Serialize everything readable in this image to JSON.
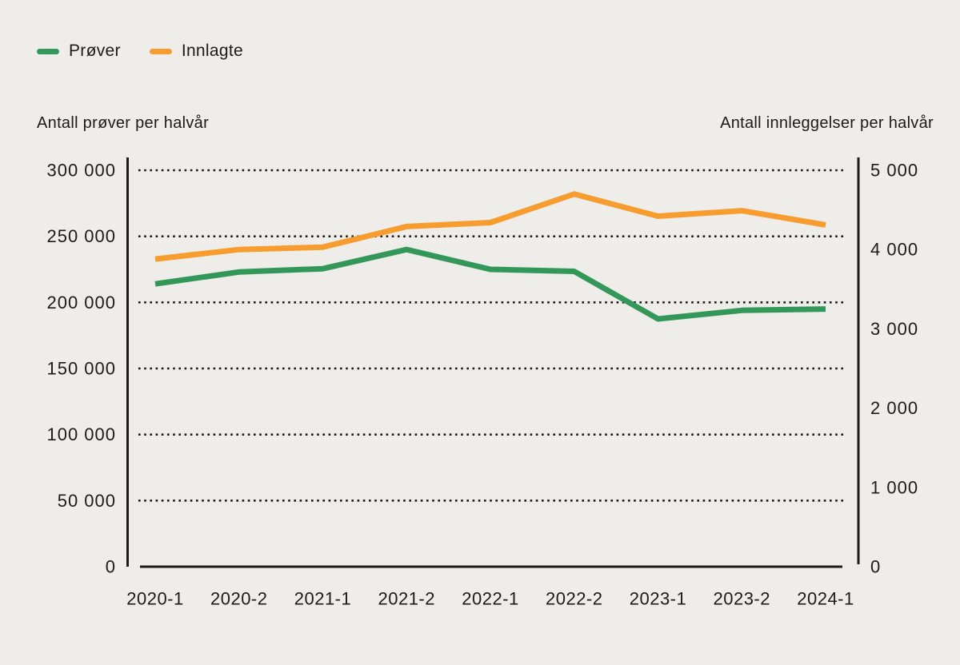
{
  "legend": {
    "items": [
      {
        "label": "Prøver",
        "color": "#33975A"
      },
      {
        "label": "Innlagte",
        "color": "#F79C2E"
      }
    ]
  },
  "chart_data": {
    "type": "line",
    "background": "#EFEDE9",
    "grid": "dotted-horizontal",
    "legend_position": "top-left",
    "categories": [
      "2020-1",
      "2020-2",
      "2021-1",
      "2021-2",
      "2022-1",
      "2022-2",
      "2023-1",
      "2023-2",
      "2024-1"
    ],
    "series": [
      {
        "name": "Prøver",
        "axis": "left",
        "color": "#33975A",
        "values": [
          214000,
          223000,
          225500,
          240000,
          225000,
          223500,
          187500,
          194000,
          195000
        ]
      },
      {
        "name": "Innlagte",
        "axis": "right",
        "color": "#F79C2E",
        "values": [
          3880,
          4000,
          4030,
          4290,
          4340,
          4700,
          4420,
          4490,
          4310
        ]
      }
    ],
    "left_axis": {
      "title": "Antall prøver per halvår",
      "min": 0,
      "max": 300000,
      "step": 50000,
      "tick_values": [
        0,
        50000,
        100000,
        150000,
        200000,
        250000,
        300000
      ],
      "tick_labels": [
        "0",
        "50 000",
        "100 000",
        "150 000",
        "200 000",
        "250 000",
        "300 000"
      ]
    },
    "right_axis": {
      "title": "Antall innleggelser per halvår",
      "min": 0,
      "max": 5000,
      "step": 1000,
      "tick_values": [
        0,
        1000,
        2000,
        3000,
        4000,
        5000
      ],
      "tick_labels": [
        "0",
        "1 000",
        "2 000",
        "3 000",
        "4 000",
        "5 000"
      ]
    }
  }
}
